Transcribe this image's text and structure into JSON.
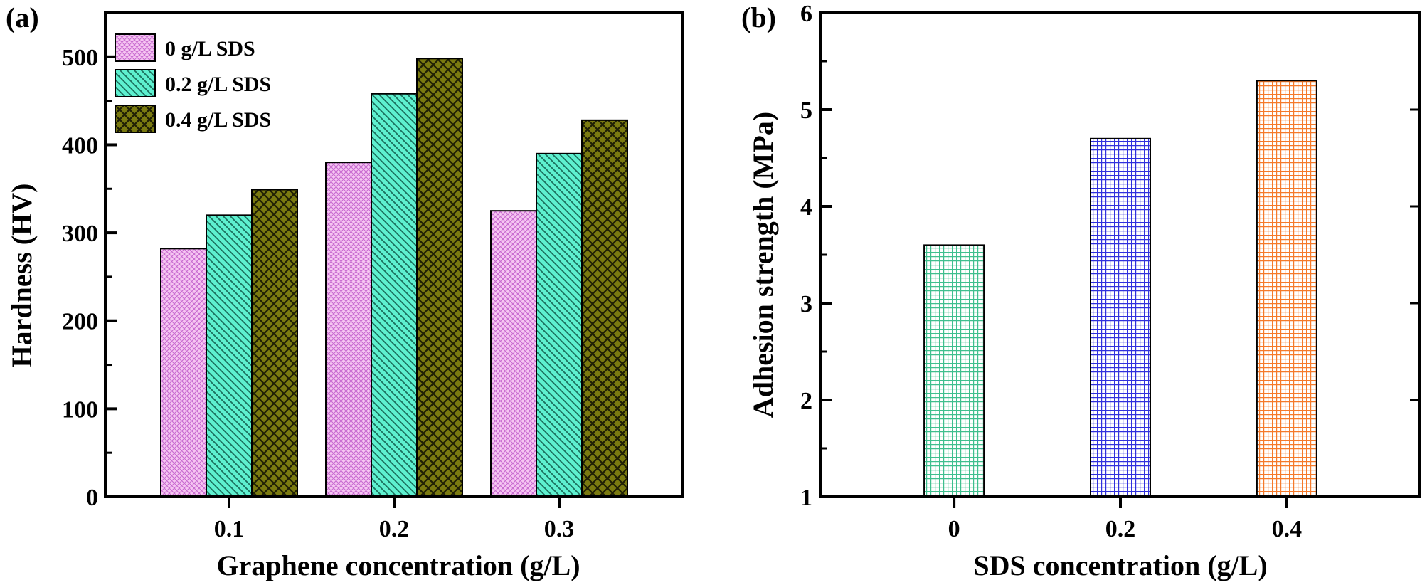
{
  "chart_data": [
    {
      "panel_label": "(a)",
      "type": "bar",
      "xlabel": "Graphene concentration (g/L)",
      "ylabel": "Hardness (HV)",
      "categories": [
        "0.1",
        "0.2",
        "0.3"
      ],
      "ylim": [
        0,
        550
      ],
      "yticks": [
        0,
        100,
        200,
        300,
        400,
        500
      ],
      "series": [
        {
          "name": "0 g/L SDS",
          "values": [
            282,
            380,
            325
          ],
          "color": "#f6c6f2",
          "stroke": "#c86ad0",
          "pattern": "crosshatch-fine"
        },
        {
          "name": "0.2 g/L SDS",
          "values": [
            320,
            458,
            390
          ],
          "color": "#5ef0cf",
          "stroke": "#1a6f5c",
          "pattern": "diagonal"
        },
        {
          "name": "0.4 g/L SDS",
          "values": [
            349,
            498,
            428
          ],
          "color": "#7a7a10",
          "stroke": "#1f1f05",
          "pattern": "crosshatch-coarse"
        }
      ],
      "legend_position": "top-left",
      "grid": false
    },
    {
      "panel_label": "(b)",
      "type": "bar",
      "xlabel": "SDS concentration (g/L)",
      "ylabel": "Adhesion strength (MPa)",
      "categories": [
        "0",
        "0.2",
        "0.4"
      ],
      "ylim": [
        1,
        6
      ],
      "yticks": [
        1,
        2,
        3,
        4,
        5,
        6
      ],
      "values": [
        3.6,
        4.7,
        5.3
      ],
      "colors": [
        "#3fbf8e",
        "#3030dd",
        "#f57a2a"
      ],
      "pattern": "grid",
      "grid": false
    }
  ]
}
